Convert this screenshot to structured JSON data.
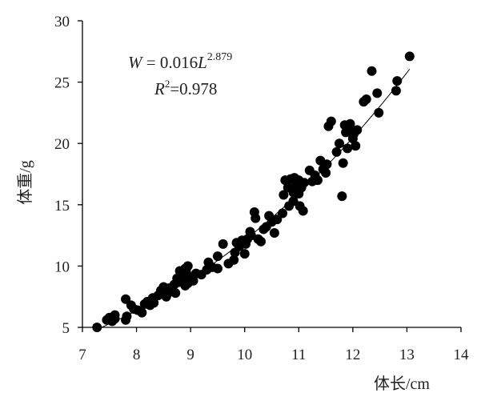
{
  "chart_data": {
    "type": "scatter",
    "xlabel": "体长/cm",
    "ylabel": "体重/g",
    "xlim": [
      7,
      14
    ],
    "ylim": [
      5,
      30
    ],
    "xticks": [
      "7",
      "8",
      "9",
      "10",
      "11",
      "12",
      "13",
      "14"
    ],
    "yticks": [
      "5",
      "10",
      "15",
      "20",
      "25",
      "30"
    ],
    "grid": false,
    "legend": "none",
    "equation": {
      "W": "W",
      "eq": " = 0.016",
      "L": "L",
      "exp": "2.879",
      "R": "R",
      "r2sup": "2",
      "r2val": "=0.978"
    },
    "fit": {
      "a": 0.016,
      "b": 2.879,
      "x_range": [
        7.25,
        13.05
      ]
    },
    "marker_color": "#000000",
    "points": [
      [
        7.27,
        5.0
      ],
      [
        7.45,
        5.6
      ],
      [
        7.5,
        5.8
      ],
      [
        7.55,
        5.5
      ],
      [
        7.6,
        6.0
      ],
      [
        7.6,
        5.7
      ],
      [
        7.8,
        5.6
      ],
      [
        7.82,
        5.9
      ],
      [
        7.8,
        7.3
      ],
      [
        7.9,
        6.8
      ],
      [
        7.95,
        6.5
      ],
      [
        8.02,
        6.4
      ],
      [
        8.1,
        6.2
      ],
      [
        8.15,
        6.9
      ],
      [
        8.2,
        7.1
      ],
      [
        8.25,
        6.8
      ],
      [
        8.3,
        7.4
      ],
      [
        8.32,
        7.0
      ],
      [
        8.4,
        7.6
      ],
      [
        8.45,
        8.0
      ],
      [
        8.5,
        7.8
      ],
      [
        8.5,
        8.3
      ],
      [
        8.55,
        7.5
      ],
      [
        8.6,
        8.2
      ],
      [
        8.62,
        7.9
      ],
      [
        8.7,
        8.5
      ],
      [
        8.72,
        7.8
      ],
      [
        8.75,
        9.0
      ],
      [
        8.8,
        9.6
      ],
      [
        8.8,
        8.7
      ],
      [
        8.85,
        8.9
      ],
      [
        8.87,
        9.2
      ],
      [
        8.9,
        8.4
      ],
      [
        8.9,
        9.8
      ],
      [
        8.92,
        9.5
      ],
      [
        8.95,
        8.6
      ],
      [
        8.95,
        10.0
      ],
      [
        9.0,
        9.1
      ],
      [
        9.05,
        8.8
      ],
      [
        9.1,
        9.4
      ],
      [
        9.2,
        9.3
      ],
      [
        9.3,
        9.7
      ],
      [
        9.33,
        10.3
      ],
      [
        9.4,
        9.9
      ],
      [
        9.5,
        10.8
      ],
      [
        9.5,
        9.8
      ],
      [
        9.6,
        11.8
      ],
      [
        9.7,
        10.2
      ],
      [
        9.8,
        10.5
      ],
      [
        9.82,
        11.1
      ],
      [
        9.85,
        11.9
      ],
      [
        9.9,
        11.6
      ],
      [
        9.95,
        12.1
      ],
      [
        10.0,
        11.0
      ],
      [
        10.02,
        11.8
      ],
      [
        10.05,
        12.2
      ],
      [
        10.1,
        12.8
      ],
      [
        10.12,
        12.5
      ],
      [
        10.18,
        14.4
      ],
      [
        10.2,
        13.9
      ],
      [
        10.25,
        12.2
      ],
      [
        10.3,
        12.0
      ],
      [
        10.35,
        13.0
      ],
      [
        10.4,
        13.2
      ],
      [
        10.45,
        14.1
      ],
      [
        10.5,
        13.6
      ],
      [
        10.55,
        12.7
      ],
      [
        10.6,
        13.8
      ],
      [
        10.7,
        14.3
      ],
      [
        10.72,
        15.8
      ],
      [
        10.75,
        17.0
      ],
      [
        10.8,
        16.4
      ],
      [
        10.82,
        14.9
      ],
      [
        10.85,
        17.1
      ],
      [
        10.9,
        15.3
      ],
      [
        10.9,
        16.0
      ],
      [
        10.92,
        17.2
      ],
      [
        10.95,
        16.6
      ],
      [
        11.0,
        15.9
      ],
      [
        11.0,
        17.0
      ],
      [
        11.02,
        14.9
      ],
      [
        11.05,
        16.4
      ],
      [
        11.08,
        14.5
      ],
      [
        11.1,
        16.8
      ],
      [
        11.2,
        17.8
      ],
      [
        11.25,
        16.9
      ],
      [
        11.3,
        17.4
      ],
      [
        11.35,
        17.0
      ],
      [
        11.4,
        18.6
      ],
      [
        11.45,
        17.9
      ],
      [
        11.5,
        17.6
      ],
      [
        11.52,
        18.3
      ],
      [
        11.55,
        21.4
      ],
      [
        11.6,
        21.8
      ],
      [
        11.7,
        19.3
      ],
      [
        11.75,
        20.0
      ],
      [
        11.8,
        15.7
      ],
      [
        11.82,
        18.4
      ],
      [
        11.85,
        21.5
      ],
      [
        11.87,
        20.9
      ],
      [
        11.9,
        19.6
      ],
      [
        11.92,
        21.2
      ],
      [
        11.95,
        21.6
      ],
      [
        12.0,
        20.4
      ],
      [
        12.02,
        20.8
      ],
      [
        12.05,
        19.8
      ],
      [
        12.08,
        21.1
      ],
      [
        12.2,
        23.4
      ],
      [
        12.25,
        23.6
      ],
      [
        12.35,
        25.9
      ],
      [
        12.45,
        24.1
      ],
      [
        12.48,
        22.5
      ],
      [
        12.8,
        24.3
      ],
      [
        12.82,
        25.1
      ],
      [
        13.05,
        27.1
      ]
    ]
  }
}
